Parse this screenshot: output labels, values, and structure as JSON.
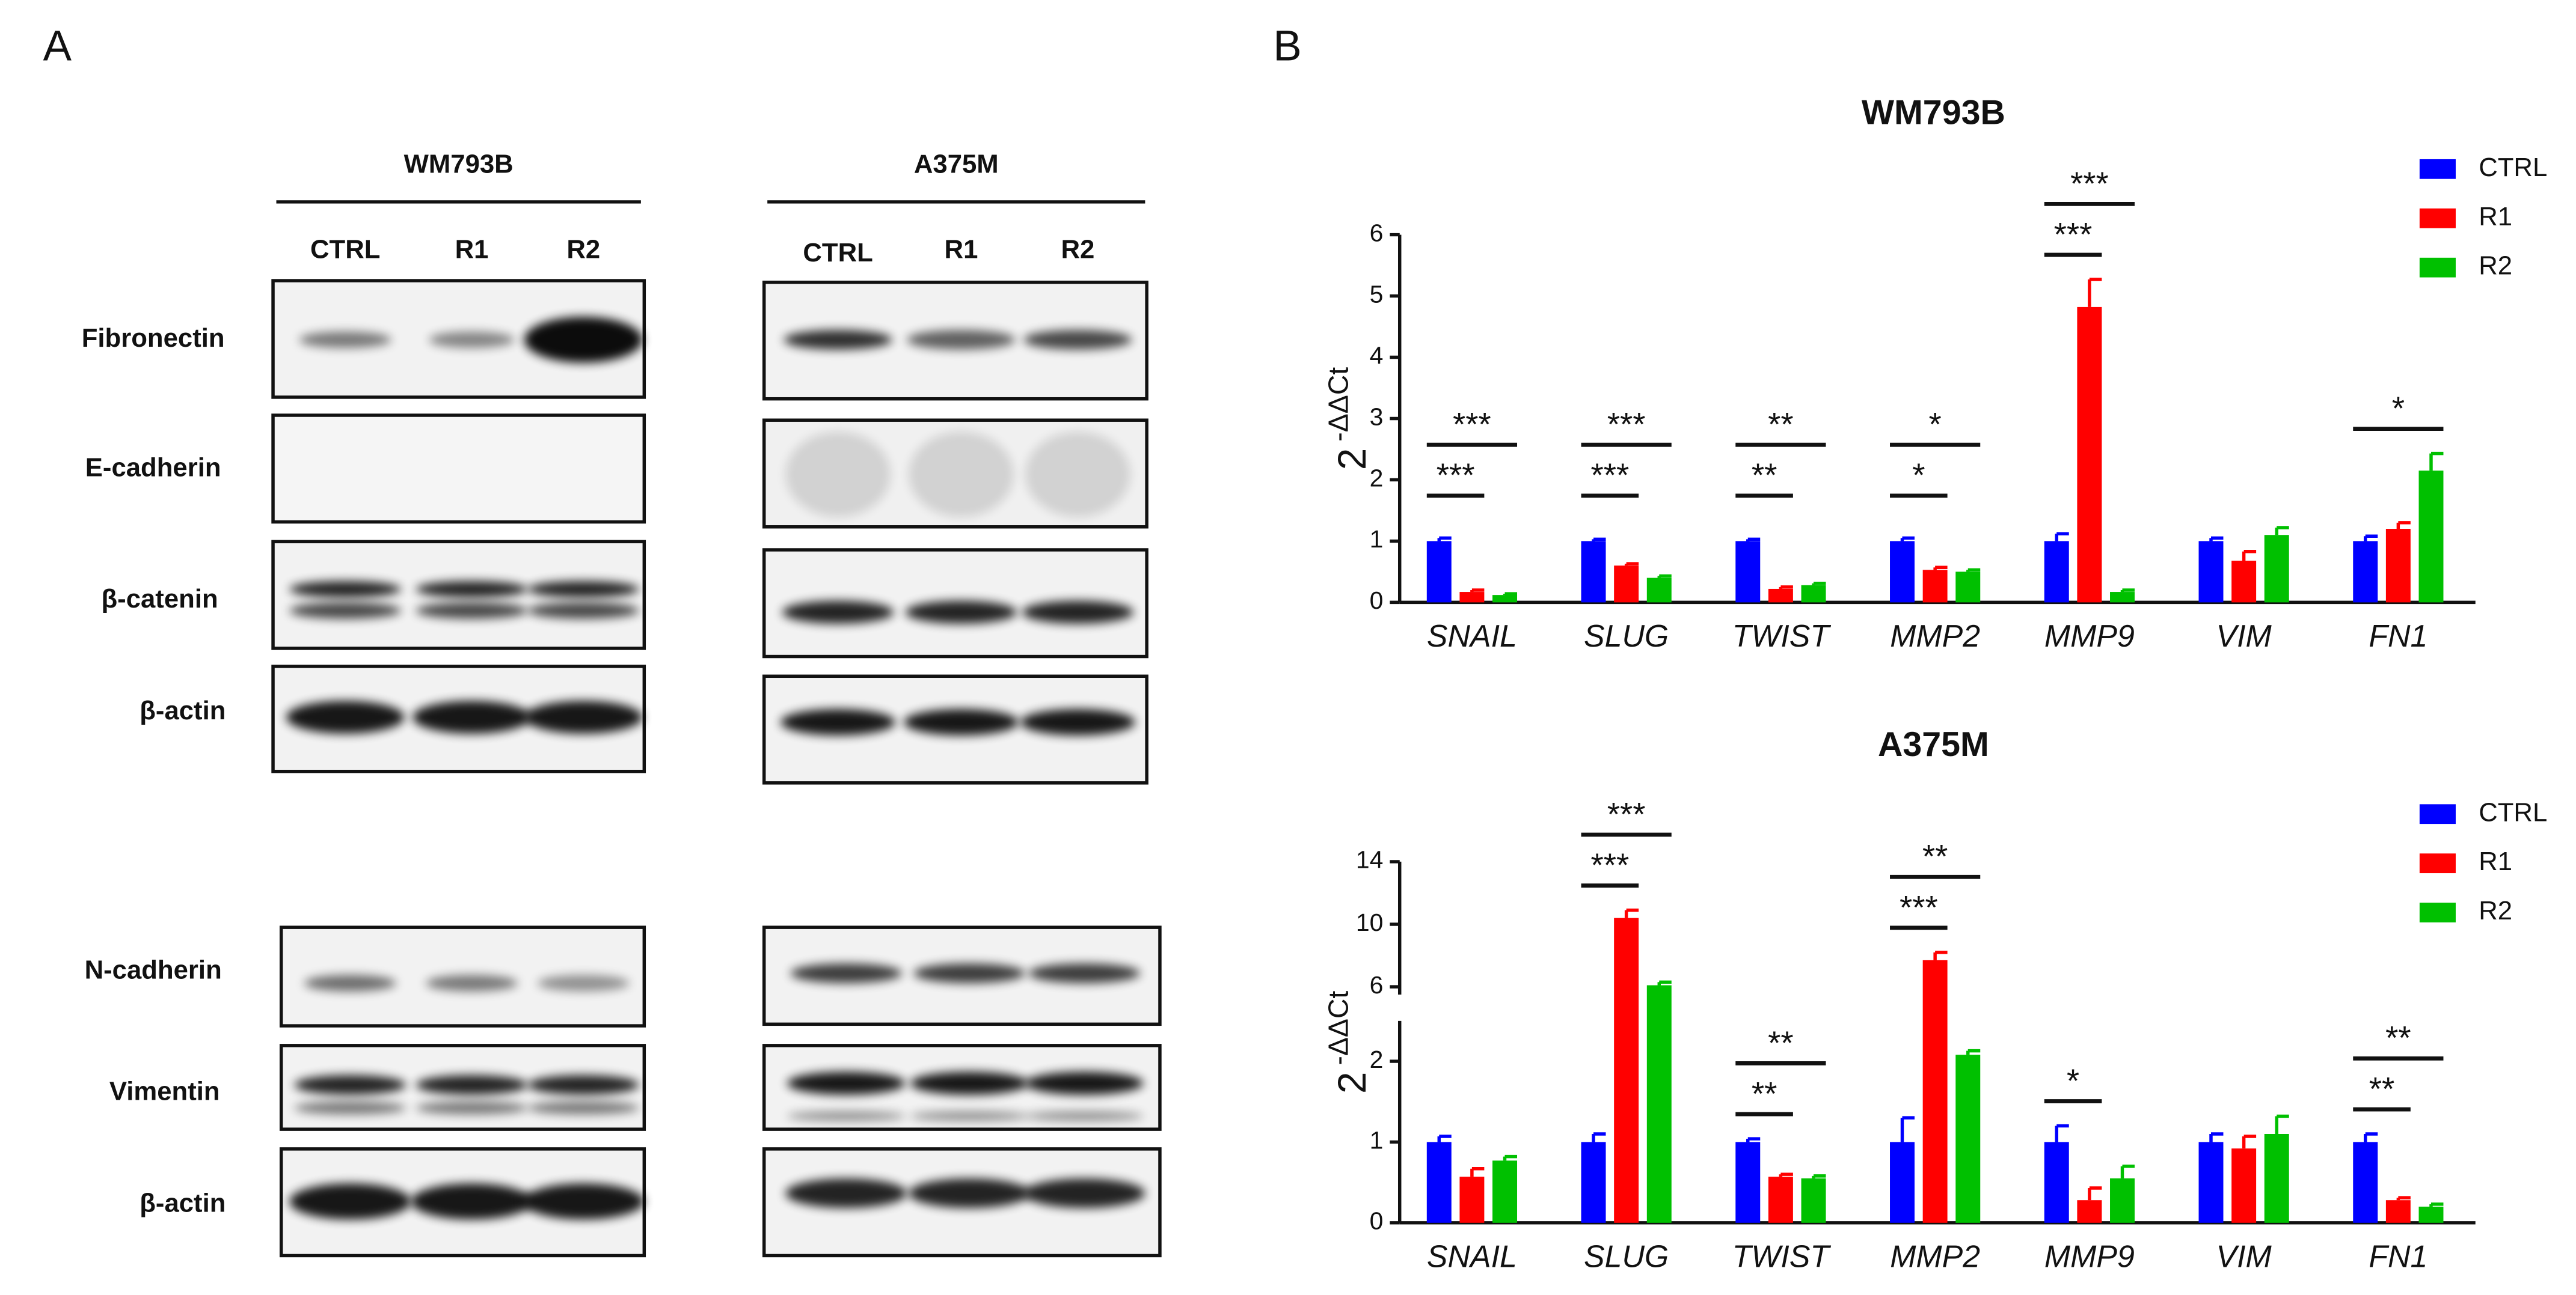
{
  "panel_labels": [
    "A",
    "B"
  ],
  "blots": {
    "cell_lines": [
      "WM793B",
      "A375M"
    ],
    "lanes": [
      [
        "CTRL",
        "R1",
        "R2"
      ],
      [
        "CTRL",
        "R1",
        "R2"
      ]
    ],
    "proteins_top": [
      "Fibronectin",
      "E-cadherin",
      "β-catenin",
      "β-actin"
    ],
    "proteins_bottom": [
      "N-cadherin",
      "Vimentin",
      "β-actin"
    ]
  },
  "chart_data": [
    {
      "type": "bar",
      "title": "WM793B",
      "y_label": {
        "base": "2",
        "exponent": "-ΔΔCt"
      },
      "categories": [
        "SNAIL",
        "SLUG",
        "TWIST",
        "MMP2",
        "MMP9",
        "VIM",
        "FN1"
      ],
      "series": [
        {
          "name": "CTRL",
          "color": "#0000ff",
          "values": [
            1,
            1,
            1,
            1,
            1,
            1,
            1
          ],
          "errors": [
            0.05,
            0.03,
            0.03,
            0.05,
            0.12,
            0.05,
            0.08
          ]
        },
        {
          "name": "R1",
          "color": "#ff0000",
          "values": [
            0.17,
            0.6,
            0.22,
            0.53,
            4.82,
            0.68,
            1.2
          ],
          "errors": [
            0.03,
            0.03,
            0.03,
            0.04,
            0.45,
            0.15,
            0.1
          ]
        },
        {
          "name": "R2",
          "color": "#00c000",
          "values": [
            0.12,
            0.4,
            0.28,
            0.5,
            0.17,
            1.1,
            2.15
          ],
          "errors": [
            0.02,
            0.03,
            0.03,
            0.03,
            0.03,
            0.12,
            0.28
          ]
        }
      ],
      "ylim": [
        0,
        6
      ],
      "yticks": [
        0,
        1,
        2,
        3,
        4,
        5,
        6
      ],
      "legend": "top-right",
      "annotations": [
        {
          "category": 0,
          "series": 1,
          "label": "***"
        },
        {
          "category": 0,
          "series": 2,
          "label": "***"
        },
        {
          "category": 1,
          "series": 1,
          "label": "***"
        },
        {
          "category": 1,
          "series": 2,
          "label": "***"
        },
        {
          "category": 2,
          "series": 1,
          "label": "**"
        },
        {
          "category": 2,
          "series": 2,
          "label": "**"
        },
        {
          "category": 3,
          "series": 1,
          "label": "*"
        },
        {
          "category": 3,
          "series": 2,
          "label": "*"
        },
        {
          "category": 4,
          "series": 1,
          "label": "***"
        },
        {
          "category": 4,
          "series": 2,
          "label": "***"
        },
        {
          "category": 6,
          "series": 2,
          "label": "*"
        }
      ]
    },
    {
      "type": "bar",
      "title": "A375M",
      "y_label": {
        "base": "2",
        "exponent": "-ΔΔCt"
      },
      "categories": [
        "SNAIL",
        "SLUG",
        "TWIST",
        "MMP2",
        "MMP9",
        "VIM",
        "FN1"
      ],
      "series": [
        {
          "name": "CTRL",
          "color": "#0000ff",
          "values": [
            1,
            1,
            1,
            1,
            1,
            1,
            1
          ],
          "errors": [
            0.07,
            0.1,
            0.04,
            0.3,
            0.2,
            0.1,
            0.1
          ]
        },
        {
          "name": "R1",
          "color": "#ff0000",
          "values": [
            0.57,
            10.4,
            0.57,
            7.7,
            0.28,
            0.92,
            0.28
          ],
          "errors": [
            0.1,
            0.5,
            0.03,
            0.5,
            0.15,
            0.15,
            0.03
          ]
        },
        {
          "name": "R2",
          "color": "#00c000",
          "values": [
            0.77,
            6.1,
            0.55,
            2.08,
            0.55,
            1.1,
            0.2
          ],
          "errors": [
            0.05,
            0.2,
            0.03,
            0.05,
            0.15,
            0.22,
            0.03
          ]
        }
      ],
      "ylim": [
        0,
        14
      ],
      "axis_break": [
        2.5,
        5.5
      ],
      "yticks": [
        0,
        1,
        2,
        6,
        10,
        14
      ],
      "legend": "top-right",
      "annotations": [
        {
          "category": 1,
          "series": 1,
          "label": "***"
        },
        {
          "category": 1,
          "series": 2,
          "label": "***"
        },
        {
          "category": 2,
          "series": 1,
          "label": "**"
        },
        {
          "category": 2,
          "series": 2,
          "label": "**"
        },
        {
          "category": 3,
          "series": 1,
          "label": "***"
        },
        {
          "category": 3,
          "series": 2,
          "label": "**"
        },
        {
          "category": 4,
          "series": 1,
          "label": "*"
        },
        {
          "category": 6,
          "series": 1,
          "label": "**"
        },
        {
          "category": 6,
          "series": 2,
          "label": "**"
        }
      ]
    }
  ]
}
